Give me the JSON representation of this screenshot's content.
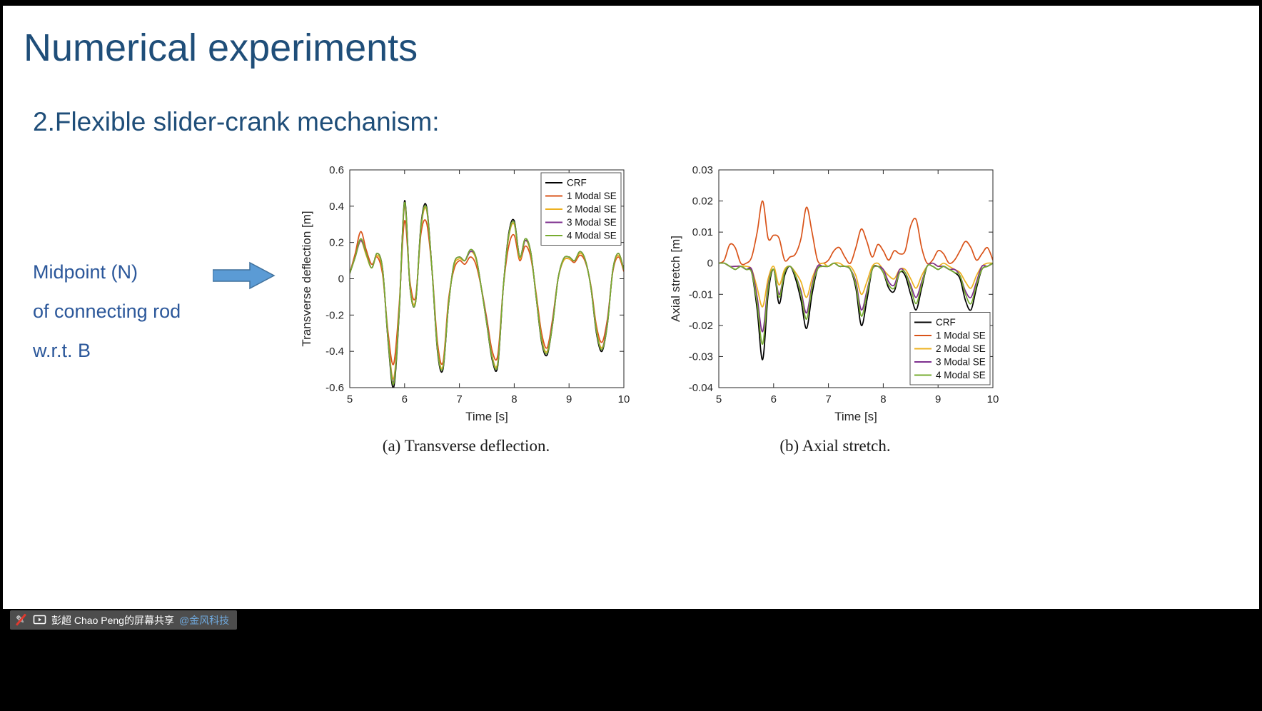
{
  "slide": {
    "title": "Numerical experiments",
    "subtitle": "2.Flexible slider-crank mechanism:",
    "left_text_lines": [
      "Midpoint (N)",
      "of connecting rod",
      "w.r.t. B"
    ]
  },
  "captions": {
    "a": "(a) Transverse deflection.",
    "b": "(b) Axial stretch."
  },
  "share_bar": {
    "text": "彭超 Chao Peng的屏幕共享",
    "link": "@金风科技"
  },
  "icons": {
    "annotation_pen": "✎",
    "screen_share": "monitor-outline"
  },
  "colors": {
    "title": "#1F4E79",
    "body_text": "#2B579A",
    "arrow_fill": "#5B9BD5",
    "arrow_border": "#41719C",
    "share_bar_bg": "#4D4D4D",
    "share_link": "#6FA8DC"
  },
  "chart_data": [
    {
      "type": "line",
      "title": "",
      "xlabel": "Time [s]",
      "ylabel": "Transverse deflection [m]",
      "xlim": [
        5,
        10
      ],
      "ylim": [
        -0.6,
        0.6
      ],
      "xticks": [
        5,
        6,
        7,
        8,
        9,
        10
      ],
      "yticks": [
        -0.6,
        -0.4,
        -0.2,
        0,
        0.2,
        0.4,
        0.6
      ],
      "grid": false,
      "legend_position": "top-right",
      "x": [
        5,
        5.1,
        5.2,
        5.3,
        5.4,
        5.5,
        5.6,
        5.7,
        5.8,
        5.9,
        6,
        6.1,
        6.2,
        6.3,
        6.4,
        6.5,
        6.6,
        6.7,
        6.8,
        6.9,
        7,
        7.1,
        7.2,
        7.3,
        7.4,
        7.5,
        7.6,
        7.7,
        7.8,
        7.9,
        8,
        8.1,
        8.2,
        8.3,
        8.4,
        8.5,
        8.6,
        8.7,
        8.8,
        8.9,
        9,
        9.1,
        9.2,
        9.3,
        9.4,
        9.5,
        9.6,
        9.7,
        9.8,
        9.9,
        10
      ],
      "series": [
        {
          "name": "CRF",
          "color": "#000000",
          "values": [
            0.03,
            0.12,
            0.22,
            0.14,
            0.06,
            0.14,
            0.05,
            -0.35,
            -0.6,
            -0.2,
            0.43,
            -0.05,
            -0.13,
            0.3,
            0.4,
            0.05,
            -0.4,
            -0.5,
            -0.15,
            0.08,
            0.12,
            0.1,
            0.16,
            0.12,
            -0.05,
            -0.25,
            -0.45,
            -0.48,
            -0.05,
            0.25,
            0.32,
            0.12,
            0.22,
            0.15,
            -0.1,
            -0.35,
            -0.42,
            -0.25,
            0,
            0.11,
            0.12,
            0.1,
            0.15,
            0.1,
            -0.05,
            -0.3,
            -0.4,
            -0.25,
            0.05,
            0.14,
            0.05
          ]
        },
        {
          "name": "1 Modal SE",
          "color": "#D95319",
          "values": [
            0.03,
            0.14,
            0.26,
            0.16,
            0.08,
            0.12,
            0.02,
            -0.3,
            -0.47,
            -0.15,
            0.32,
            -0.02,
            -0.1,
            0.25,
            0.31,
            0.05,
            -0.35,
            -0.46,
            -0.12,
            0.05,
            0.1,
            0.08,
            0.12,
            0.08,
            -0.05,
            -0.22,
            -0.4,
            -0.42,
            -0.05,
            0.18,
            0.24,
            0.1,
            0.18,
            0.12,
            -0.08,
            -0.3,
            -0.38,
            -0.22,
            0,
            0.1,
            0.11,
            0.09,
            0.13,
            0.09,
            -0.04,
            -0.26,
            -0.35,
            -0.22,
            0.04,
            0.12,
            0.04
          ]
        },
        {
          "name": "2 Modal SE",
          "color": "#EDB120",
          "values": [
            0.03,
            0.12,
            0.21,
            0.13,
            0.06,
            0.13,
            0.04,
            -0.33,
            -0.55,
            -0.18,
            0.4,
            -0.04,
            -0.12,
            0.28,
            0.38,
            0.05,
            -0.38,
            -0.48,
            -0.14,
            0.07,
            0.11,
            0.1,
            0.15,
            0.11,
            -0.05,
            -0.24,
            -0.43,
            -0.46,
            -0.05,
            0.23,
            0.3,
            0.11,
            0.21,
            0.14,
            -0.09,
            -0.33,
            -0.4,
            -0.24,
            0,
            0.1,
            0.11,
            0.1,
            0.14,
            0.1,
            -0.05,
            -0.28,
            -0.38,
            -0.24,
            0.05,
            0.13,
            0.05
          ]
        },
        {
          "name": "3 Modal SE",
          "color": "#7E2F8E",
          "values": [
            0.03,
            0.12,
            0.21,
            0.14,
            0.06,
            0.14,
            0.05,
            -0.34,
            -0.57,
            -0.19,
            0.41,
            -0.05,
            -0.13,
            0.29,
            0.39,
            0.05,
            -0.39,
            -0.49,
            -0.15,
            0.08,
            0.12,
            0.1,
            0.15,
            0.12,
            -0.05,
            -0.24,
            -0.44,
            -0.47,
            -0.05,
            0.24,
            0.31,
            0.12,
            0.21,
            0.15,
            -0.1,
            -0.34,
            -0.41,
            -0.24,
            0,
            0.11,
            0.12,
            0.1,
            0.15,
            0.1,
            -0.05,
            -0.29,
            -0.39,
            -0.24,
            0.05,
            0.14,
            0.05
          ]
        },
        {
          "name": "4 Modal SE",
          "color": "#77AC30",
          "values": [
            0.03,
            0.12,
            0.22,
            0.14,
            0.06,
            0.14,
            0.05,
            -0.34,
            -0.58,
            -0.19,
            0.42,
            -0.05,
            -0.13,
            0.29,
            0.39,
            0.05,
            -0.39,
            -0.49,
            -0.15,
            0.08,
            0.12,
            0.1,
            0.16,
            0.12,
            -0.05,
            -0.25,
            -0.44,
            -0.47,
            -0.05,
            0.24,
            0.31,
            0.12,
            0.22,
            0.15,
            -0.1,
            -0.34,
            -0.41,
            -0.25,
            0,
            0.11,
            0.12,
            0.1,
            0.15,
            0.1,
            -0.05,
            -0.29,
            -0.39,
            -0.25,
            0.05,
            0.14,
            0.05
          ]
        }
      ]
    },
    {
      "type": "line",
      "title": "",
      "xlabel": "Time [s]",
      "ylabel": "Axial stretch [m]",
      "xlim": [
        5,
        10
      ],
      "ylim": [
        -0.04,
        0.03
      ],
      "xticks": [
        5,
        6,
        7,
        8,
        9,
        10
      ],
      "yticks": [
        -0.04,
        -0.03,
        -0.02,
        -0.01,
        0,
        0.01,
        0.02,
        0.03
      ],
      "grid": false,
      "legend_position": "bottom-right",
      "x": [
        5,
        5.1,
        5.2,
        5.3,
        5.4,
        5.5,
        5.6,
        5.7,
        5.8,
        5.9,
        6,
        6.1,
        6.2,
        6.3,
        6.4,
        6.5,
        6.6,
        6.7,
        6.8,
        6.9,
        7,
        7.1,
        7.2,
        7.3,
        7.4,
        7.5,
        7.6,
        7.7,
        7.8,
        7.9,
        8,
        8.1,
        8.2,
        8.3,
        8.4,
        8.5,
        8.6,
        8.7,
        8.8,
        8.9,
        9,
        9.1,
        9.2,
        9.3,
        9.4,
        9.5,
        9.6,
        9.7,
        9.8,
        9.9,
        10
      ],
      "series": [
        {
          "name": "CRF",
          "color": "#000000",
          "values": [
            0,
            0,
            -0.001,
            -0.002,
            -0.001,
            -0.002,
            -0.003,
            -0.015,
            -0.031,
            -0.01,
            -0.002,
            -0.013,
            -0.004,
            -0.001,
            -0.005,
            -0.012,
            -0.021,
            -0.01,
            -0.002,
            -0.001,
            -0.001,
            0,
            -0.001,
            -0.001,
            -0.002,
            -0.008,
            -0.02,
            -0.012,
            -0.002,
            -0.001,
            -0.003,
            -0.008,
            -0.009,
            -0.003,
            -0.004,
            -0.01,
            -0.015,
            -0.008,
            -0.001,
            -0.001,
            -0.002,
            -0.001,
            -0.002,
            -0.003,
            -0.005,
            -0.012,
            -0.015,
            -0.008,
            -0.002,
            -0.001,
            0
          ]
        },
        {
          "name": "1 Modal SE",
          "color": "#D95319",
          "values": [
            0,
            0.001,
            0.006,
            0.005,
            0,
            0,
            0.002,
            0.01,
            0.02,
            0.008,
            0.009,
            0.008,
            0.001,
            0.002,
            0.003,
            0.008,
            0.018,
            0.01,
            0.001,
            0,
            0.001,
            0.004,
            0.005,
            0.002,
            0,
            0.005,
            0.011,
            0.007,
            0.002,
            0.006,
            0.004,
            0.001,
            0.004,
            0.003,
            0.004,
            0.012,
            0.014,
            0.005,
            0,
            0.001,
            0.004,
            0.003,
            0,
            0.001,
            0.004,
            0.007,
            0.005,
            0.001,
            0.003,
            0.005,
            0.001
          ]
        },
        {
          "name": "2 Modal SE",
          "color": "#EDB120",
          "values": [
            0,
            0,
            -0.001,
            -0.001,
            -0.001,
            -0.001,
            -0.002,
            -0.008,
            -0.014,
            -0.005,
            -0.001,
            -0.007,
            -0.002,
            -0.001,
            -0.003,
            -0.006,
            -0.011,
            -0.005,
            -0.001,
            0,
            -0.001,
            0,
            0,
            -0.001,
            -0.001,
            -0.004,
            -0.01,
            -0.006,
            -0.001,
            0,
            -0.002,
            -0.004,
            -0.005,
            -0.002,
            -0.002,
            -0.005,
            -0.008,
            -0.004,
            -0.001,
            0,
            -0.001,
            0,
            -0.001,
            -0.002,
            -0.003,
            -0.006,
            -0.008,
            -0.004,
            -0.001,
            0,
            0
          ]
        },
        {
          "name": "3 Modal SE",
          "color": "#7E2F8E",
          "values": [
            0,
            0,
            -0.001,
            -0.001,
            -0.001,
            -0.002,
            -0.002,
            -0.011,
            -0.022,
            -0.007,
            -0.002,
            -0.01,
            -0.003,
            -0.001,
            -0.004,
            -0.009,
            -0.016,
            -0.007,
            -0.001,
            -0.001,
            -0.001,
            0,
            -0.001,
            -0.001,
            -0.002,
            -0.006,
            -0.015,
            -0.009,
            -0.002,
            -0.001,
            -0.002,
            -0.006,
            -0.007,
            -0.002,
            -0.003,
            -0.007,
            -0.011,
            -0.006,
            -0.001,
            0,
            -0.001,
            -0.001,
            -0.002,
            -0.002,
            -0.004,
            -0.009,
            -0.011,
            -0.006,
            -0.001,
            -0.001,
            0
          ]
        },
        {
          "name": "4 Modal SE",
          "color": "#77AC30",
          "values": [
            0,
            0,
            -0.001,
            -0.002,
            -0.001,
            -0.002,
            -0.003,
            -0.013,
            -0.026,
            -0.008,
            -0.002,
            -0.011,
            -0.003,
            -0.001,
            -0.004,
            -0.01,
            -0.018,
            -0.008,
            -0.002,
            -0.001,
            -0.001,
            0,
            -0.001,
            -0.001,
            -0.002,
            -0.007,
            -0.017,
            -0.01,
            -0.002,
            -0.001,
            -0.003,
            -0.007,
            -0.008,
            -0.003,
            -0.003,
            -0.008,
            -0.013,
            -0.007,
            -0.001,
            -0.001,
            -0.002,
            -0.001,
            -0.002,
            -0.003,
            -0.004,
            -0.01,
            -0.013,
            -0.007,
            -0.002,
            -0.001,
            0
          ]
        }
      ]
    }
  ]
}
